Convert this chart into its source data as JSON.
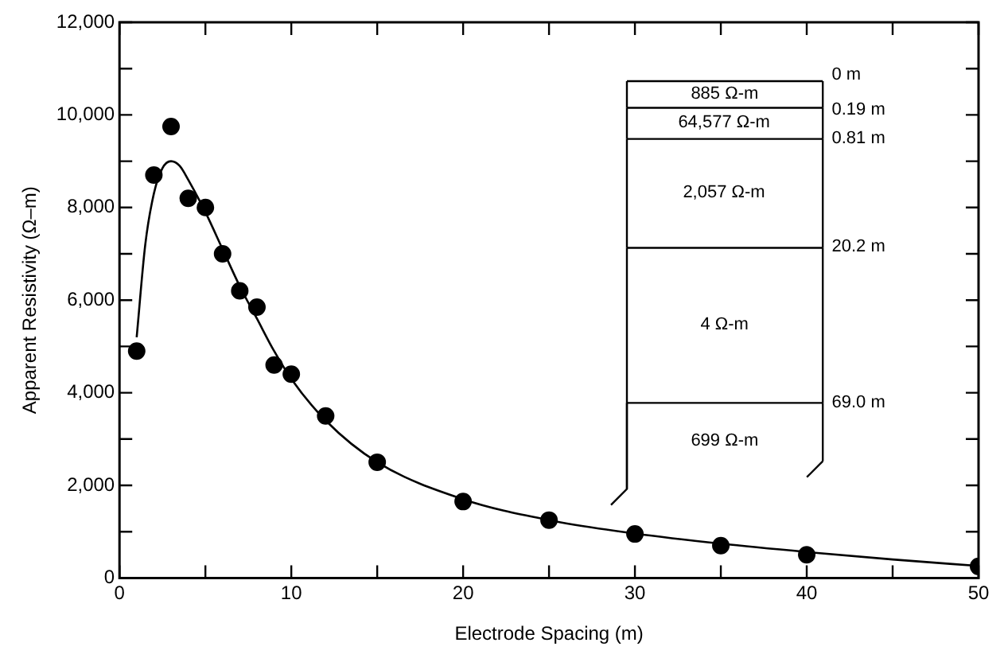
{
  "chart_data": {
    "type": "scatter",
    "xlabel": "Electrode Spacing (m)",
    "ylabel": "Apparent Resistivity (Ω–m)",
    "xlim": [
      0,
      50
    ],
    "xticks": [
      0,
      {
        "value": 5,
        "label": null
      },
      10,
      {
        "value": 15,
        "label": null
      },
      20,
      {
        "value": 25,
        "label": null
      },
      30,
      {
        "value": 35,
        "label": null
      },
      40,
      {
        "value": 45,
        "label": null
      },
      50
    ],
    "ylim": [
      0,
      12000
    ],
    "yticks": [
      0,
      {
        "value": 1000,
        "label": null
      },
      {
        "value": 2000,
        "label": "2,000"
      },
      {
        "value": 3000,
        "label": null
      },
      {
        "value": 4000,
        "label": "4,000"
      },
      {
        "value": 5000,
        "label": null
      },
      {
        "value": 6000,
        "label": "6,000"
      },
      {
        "value": 7000,
        "label": null
      },
      {
        "value": 8000,
        "label": "8,000"
      },
      {
        "value": 9000,
        "label": null
      },
      {
        "value": 10000,
        "label": "10,000"
      },
      {
        "value": 11000,
        "label": null
      },
      {
        "value": 12000,
        "label": "12,000"
      }
    ],
    "grid": false,
    "legend": false,
    "marker": "circle",
    "series": [
      {
        "type": "scatter",
        "color": "#000000",
        "x": [
          1,
          2,
          3,
          4,
          5,
          6,
          7,
          8,
          9,
          10,
          12,
          15,
          20,
          25,
          30,
          35,
          40,
          50
        ],
        "values": [
          4900,
          8700,
          9750,
          8200,
          8000,
          7000,
          6200,
          5850,
          4600,
          4400,
          3500,
          2500,
          1650,
          1250,
          950,
          700,
          500,
          250
        ]
      },
      {
        "type": "line",
        "color": "#000000",
        "marker": "none",
        "line_style": "solid",
        "x": [
          1,
          1.5,
          2,
          2.5,
          3,
          3.5,
          4,
          5,
          6,
          7,
          8,
          9,
          10,
          12,
          15,
          20,
          25,
          30,
          35,
          40,
          45,
          50
        ],
        "values": [
          5200,
          7200,
          8300,
          8850,
          9000,
          8900,
          8600,
          7900,
          7100,
          6300,
          5600,
          4900,
          4300,
          3400,
          2500,
          1700,
          1250,
          960,
          740,
          560,
          400,
          260
        ]
      }
    ],
    "annotations": [
      "885 Ω-m",
      "64,577 Ω-m",
      "2,057 Ω-m",
      "4 Ω-m",
      "699 Ω-m",
      "0 m",
      "0.19 m",
      "0.81 m",
      "20.2 m",
      "69.0 m"
    ]
  }
}
